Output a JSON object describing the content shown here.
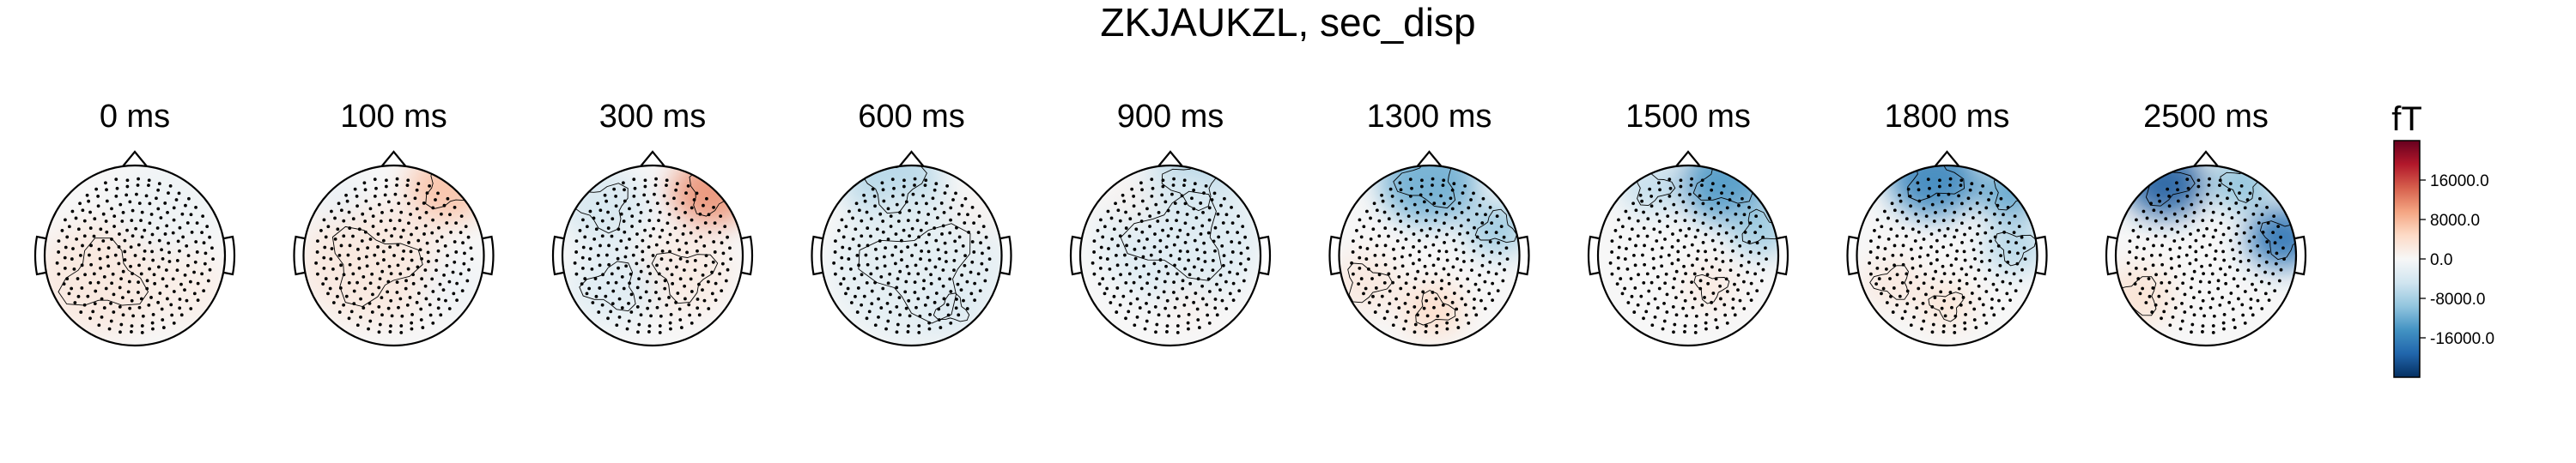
{
  "chart_data": {
    "type": "heatmap",
    "subtype": "topomap-series",
    "title": "ZKJAUKZL, sec_disp",
    "colormap": "RdBu_r",
    "grid": false,
    "legend": "colorbar-right",
    "colorbar": {
      "unit": "fT",
      "ticks": [
        16000.0,
        8000.0,
        0.0,
        -8000.0,
        -16000.0
      ],
      "tick_labels": [
        "16000.0",
        "8000.0",
        "0.0",
        "-8000.0",
        "-16000.0"
      ],
      "vmin": -24000,
      "vmax": 24000
    },
    "panels": [
      {
        "label": "0 ms",
        "time_ms": 0,
        "blobs": [
          {
            "cx": -0.35,
            "cy": 0.25,
            "r": 0.75,
            "v": 2500
          },
          {
            "cx": 0.55,
            "cy": 0.35,
            "r": 0.5,
            "v": 1500
          },
          {
            "cx": 0.35,
            "cy": -0.55,
            "r": 0.6,
            "v": -1200
          }
        ]
      },
      {
        "label": "100 ms",
        "time_ms": 100,
        "blobs": [
          {
            "cx": 0.6,
            "cy": -0.75,
            "r": 0.45,
            "v": 7000
          },
          {
            "cx": -0.25,
            "cy": 0.1,
            "r": 0.8,
            "v": 2500
          },
          {
            "cx": 0.7,
            "cy": 0.35,
            "r": 0.4,
            "v": -1000
          },
          {
            "cx": -0.6,
            "cy": -0.65,
            "r": 0.3,
            "v": -1500
          }
        ]
      },
      {
        "label": "300 ms",
        "time_ms": 300,
        "blobs": [
          {
            "cx": 0.65,
            "cy": -0.7,
            "r": 0.45,
            "v": 11000
          },
          {
            "cx": 0.35,
            "cy": 0.2,
            "r": 0.55,
            "v": 2000
          },
          {
            "cx": -0.55,
            "cy": -0.55,
            "r": 0.5,
            "v": -4000
          },
          {
            "cx": -0.45,
            "cy": 0.35,
            "r": 0.5,
            "v": -3000
          }
        ]
      },
      {
        "label": "600 ms",
        "time_ms": 600,
        "blobs": [
          {
            "cx": -0.2,
            "cy": -0.8,
            "r": 0.55,
            "v": -7000
          },
          {
            "cx": 0.1,
            "cy": 0.15,
            "r": 1.0,
            "v": -2500
          },
          {
            "cx": 0.7,
            "cy": -0.45,
            "r": 0.25,
            "v": 1000
          },
          {
            "cx": 0.45,
            "cy": 0.6,
            "r": 0.3,
            "v": -3500
          }
        ]
      },
      {
        "label": "900 ms",
        "time_ms": 900,
        "blobs": [
          {
            "cx": 0.25,
            "cy": -0.8,
            "r": 0.5,
            "v": -9000
          },
          {
            "cx": 0.1,
            "cy": -0.2,
            "r": 0.9,
            "v": -3000
          },
          {
            "cx": -0.45,
            "cy": -0.6,
            "r": 0.25,
            "v": 1000
          },
          {
            "cx": 0.2,
            "cy": 0.55,
            "r": 0.25,
            "v": 1200
          }
        ]
      },
      {
        "label": "1300 ms",
        "time_ms": 1300,
        "blobs": [
          {
            "cx": 0.0,
            "cy": -0.82,
            "r": 0.55,
            "v": -12000
          },
          {
            "cx": 0.75,
            "cy": -0.3,
            "r": 0.35,
            "v": -9000
          },
          {
            "cx": 0.05,
            "cy": 0.6,
            "r": 0.35,
            "v": 4500
          },
          {
            "cx": -0.7,
            "cy": 0.3,
            "r": 0.4,
            "v": 2500
          }
        ]
      },
      {
        "label": "1500 ms",
        "time_ms": 1500,
        "blobs": [
          {
            "cx": 0.4,
            "cy": -0.8,
            "r": 0.5,
            "v": -14000
          },
          {
            "cx": 0.8,
            "cy": -0.3,
            "r": 0.35,
            "v": -9000
          },
          {
            "cx": -0.4,
            "cy": -0.75,
            "r": 0.35,
            "v": -6000
          },
          {
            "cx": 0.25,
            "cy": 0.35,
            "r": 0.3,
            "v": 2500
          }
        ]
      },
      {
        "label": "1800 ms",
        "time_ms": 1800,
        "blobs": [
          {
            "cx": -0.15,
            "cy": -0.85,
            "r": 0.5,
            "v": -16000
          },
          {
            "cx": 0.7,
            "cy": -0.7,
            "r": 0.35,
            "v": -13000
          },
          {
            "cx": 0.75,
            "cy": -0.1,
            "r": 0.35,
            "v": -7000
          },
          {
            "cx": 0.0,
            "cy": 0.55,
            "r": 0.3,
            "v": 3500
          },
          {
            "cx": -0.6,
            "cy": 0.3,
            "r": 0.35,
            "v": 2500
          }
        ]
      },
      {
        "label": "2500 ms",
        "time_ms": 2500,
        "blobs": [
          {
            "cx": -0.45,
            "cy": -0.8,
            "r": 0.45,
            "v": -20000
          },
          {
            "cx": 0.85,
            "cy": -0.2,
            "r": 0.4,
            "v": -18000
          },
          {
            "cx": 0.4,
            "cy": -0.8,
            "r": 0.35,
            "v": -10000
          },
          {
            "cx": -0.75,
            "cy": 0.45,
            "r": 0.4,
            "v": 3500
          }
        ]
      }
    ]
  }
}
